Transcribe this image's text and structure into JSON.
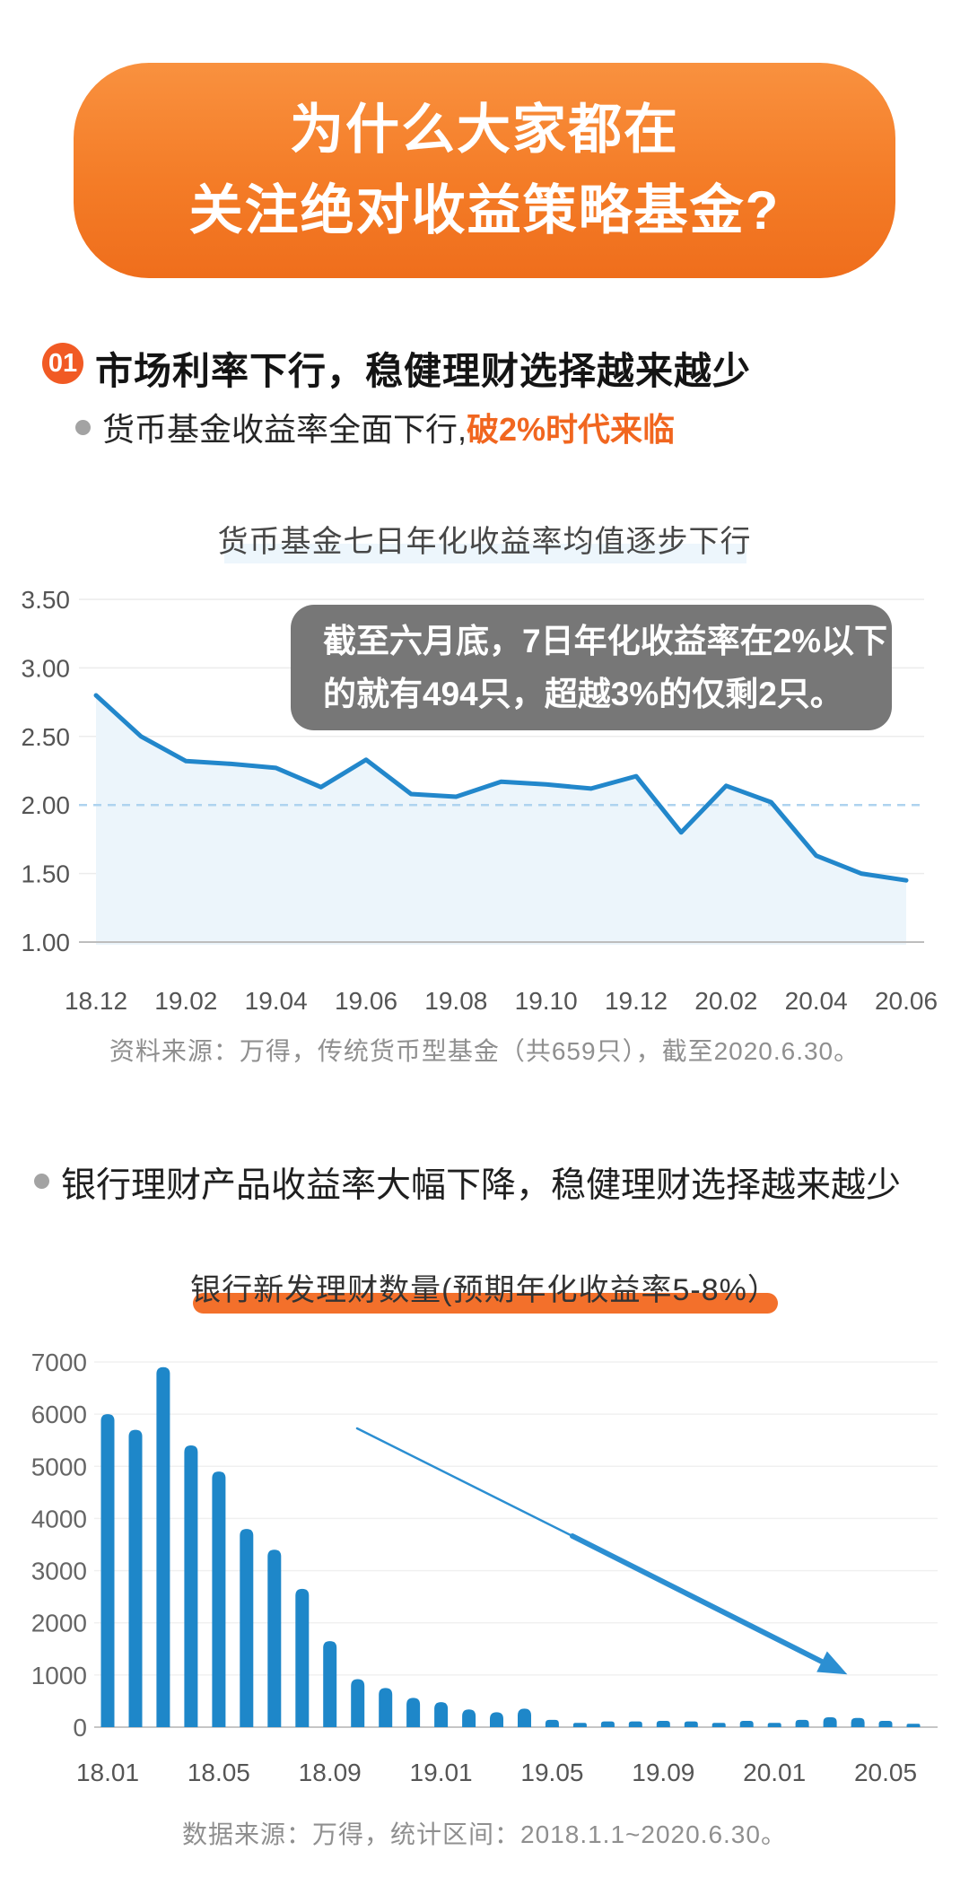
{
  "banner": {
    "line1": "为什么大家都在",
    "line2": "关注绝对收益策略基金?"
  },
  "section1": {
    "badge": "01",
    "heading": "市场利率下行，稳健理财选择越来越少",
    "bullet1_plain": "货币基金收益率全面下行,",
    "bullet1_highlight": "破2%时代来临",
    "bullet2": "银行理财产品收益率大幅下降，稳健理财选择越来越少"
  },
  "chart1": {
    "tooltip_line1": "截至六月底，7日年化收益率在2%以下",
    "tooltip_line2": "的就有494只，超越3%的仅剩2只。",
    "source": "资料来源：万得，传统货币型基金（共659只），截至2020.6.30。"
  },
  "chart2": {
    "source": "数据来源：万得，统计区间：2018.1.1~2020.6.30。"
  },
  "colors": {
    "banner_orange": "#f47c27",
    "badge_orange": "#f15a24",
    "highlight_orange": "#f1661f",
    "swoosh_orange": "#f3702b",
    "line_blue": "#2287cb",
    "bar_blue": "#1e87c9",
    "arrow_blue": "#2c8fd2",
    "area_fill": "#ecf5fb",
    "dashed_ref_blue": "#aed3ef",
    "tooltip_gray": "#717171",
    "gridline_gray": "#ececec",
    "axis_gray": "#bdbdbd",
    "label_gray": "#555555"
  },
  "chart_data": [
    {
      "type": "line",
      "title": "货币基金七日年化收益率均值逐步下行",
      "x": [
        "18.12",
        "19.01",
        "19.02",
        "19.03",
        "19.04",
        "19.05",
        "19.06",
        "19.07",
        "19.08",
        "19.09",
        "19.10",
        "19.11",
        "19.12",
        "20.01",
        "20.02",
        "20.03",
        "20.04",
        "20.05",
        "20.06"
      ],
      "values": [
        2.8,
        2.5,
        2.32,
        2.3,
        2.27,
        2.13,
        2.33,
        2.08,
        2.06,
        2.17,
        2.15,
        2.12,
        2.21,
        1.8,
        2.14,
        2.02,
        1.63,
        1.5,
        1.45
      ],
      "x_tick_labels": [
        "18.12",
        "19.02",
        "19.04",
        "19.06",
        "19.08",
        "19.10",
        "19.12",
        "20.02",
        "20.04",
        "20.06"
      ],
      "y_ticks": [
        1.0,
        1.5,
        2.0,
        2.5,
        3.0,
        3.5
      ],
      "y_tick_labels": [
        "1.00",
        "1.50",
        "2.00",
        "2.50",
        "3.00",
        "3.50"
      ],
      "ylim": [
        1.0,
        3.5
      ],
      "reference_line": 2.0,
      "grid": true,
      "annotation": "截至六月底，7日年化收益率在2%以下的就有494只，超越3%的仅剩2只。",
      "source": "资料来源：万得，传统货币型基金（共659只），截至2020.6.30。"
    },
    {
      "type": "bar",
      "title": "银行新发理财数量(预期年化收益率5-8%）",
      "x": [
        "18.01",
        "18.02",
        "18.03",
        "18.04",
        "18.05",
        "18.06",
        "18.07",
        "18.08",
        "18.09",
        "18.10",
        "18.11",
        "18.12",
        "19.01",
        "19.02",
        "19.03",
        "19.04",
        "19.05",
        "19.06",
        "19.07",
        "19.08",
        "19.09",
        "19.10",
        "19.11",
        "19.12",
        "20.01",
        "20.02",
        "20.03",
        "20.04",
        "20.05",
        "20.06"
      ],
      "values": [
        6000,
        5700,
        6900,
        5400,
        4900,
        3800,
        3400,
        2650,
        1650,
        920,
        750,
        560,
        480,
        340,
        285,
        355,
        140,
        80,
        110,
        110,
        120,
        110,
        80,
        120,
        80,
        140,
        190,
        175,
        120,
        65
      ],
      "x_tick_labels": [
        "18.01",
        "18.05",
        "18.09",
        "19.01",
        "19.05",
        "19.09",
        "20.01",
        "20.05"
      ],
      "x_tick_every": 4,
      "y_ticks": [
        0,
        1000,
        2000,
        3000,
        4000,
        5000,
        6000,
        7000
      ],
      "y_tick_labels": [
        "0",
        "1000",
        "2000",
        "3000",
        "4000",
        "5000",
        "6000",
        "7000"
      ],
      "ylim": [
        0,
        7000
      ],
      "grid": true,
      "annotation": "downward-trend-arrow",
      "source": "数据来源：万得，统计区间：2018.1.1~2020.6.30。"
    }
  ]
}
